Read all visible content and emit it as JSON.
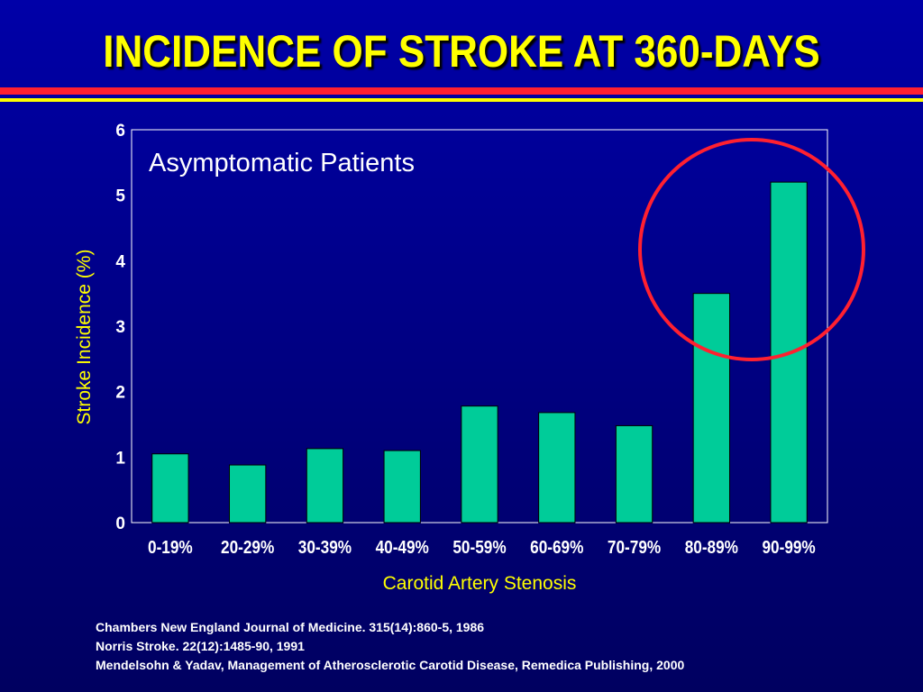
{
  "title": "INCIDENCE OF STROKE AT 360-DAYS",
  "colors": {
    "title": "#ffff00",
    "bar_fill": "#00cc99",
    "axis_text": "#ffff00",
    "plot_text": "#ffffff",
    "highlight_circle": "#ff2030",
    "red_rule": "#ff2030",
    "yellow_rule": "#ffff00"
  },
  "chart_data": {
    "type": "bar",
    "annotation": "Asymptomatic Patients",
    "xlabel": "Carotid Artery Stenosis",
    "ylabel": "Stroke Incidence (%)",
    "ylim": [
      0,
      6
    ],
    "yticks": [
      "0",
      "1",
      "2",
      "3",
      "4",
      "5",
      "6"
    ],
    "categories": [
      "0-19%",
      "20-29%",
      "30-39%",
      "40-49%",
      "50-59%",
      "60-69%",
      "70-79%",
      "80-89%",
      "90-99%"
    ],
    "values": [
      1.05,
      0.88,
      1.13,
      1.1,
      1.78,
      1.68,
      1.48,
      3.5,
      5.2
    ],
    "highlight": "80-89% and 90-99% circled",
    "grid": false
  },
  "references": [
    "Chambers New England Journal of Medicine. 315(14):860-5, 1986",
    "Norris Stroke. 22(12):1485-90, 1991",
    "Mendelsohn & Yadav, Management of Atherosclerotic Carotid Disease, Remedica Publishing, 2000"
  ]
}
